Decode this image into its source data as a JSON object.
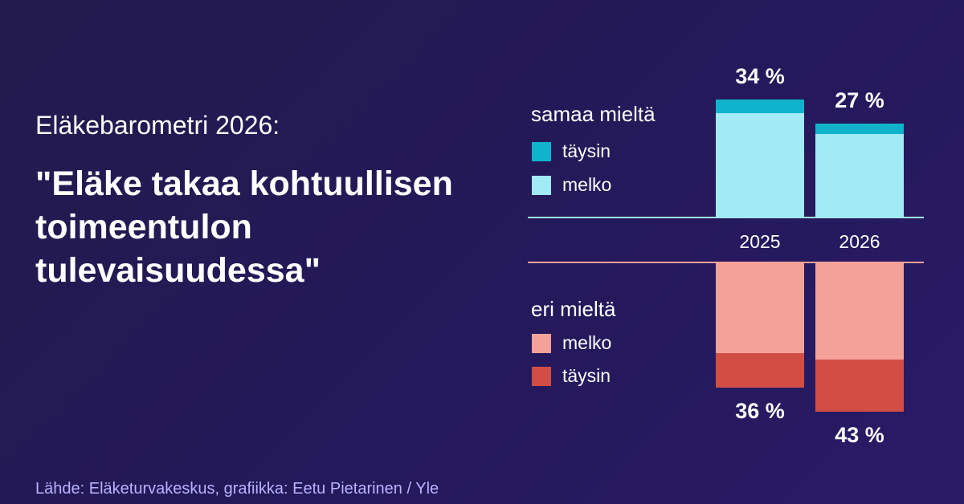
{
  "kicker": "Eläkebarometri 2026:",
  "headline": "\"Eläke takaa kohtuullisen toimeentulon tulevaisuudessa\"",
  "source": "Lähde: Eläketurvakeskus, grafiikka: Eetu Pietarinen / Yle",
  "colors": {
    "agree_fully": "#0fb3cc",
    "agree_somewhat": "#a1eaf6",
    "disagree_somewhat": "#f4a199",
    "disagree_fully": "#d24e44",
    "agree_axis": "#a1eaf6",
    "disagree_axis": "#f4a199"
  },
  "chart_data": {
    "type": "bar",
    "categories": [
      "2025",
      "2026"
    ],
    "groups": [
      {
        "title": "samaa mieltä",
        "totals": [
          "34 %",
          "27 %"
        ],
        "total_values": [
          34,
          27
        ],
        "series": [
          {
            "name": "täysin",
            "values": [
              4,
              3
            ]
          },
          {
            "name": "melko",
            "values": [
              30,
              24
            ]
          }
        ]
      },
      {
        "title": "eri mieltä",
        "totals": [
          "36 %",
          "43 %"
        ],
        "total_values": [
          36,
          43
        ],
        "series": [
          {
            "name": "melko",
            "values": [
              26,
              28
            ]
          },
          {
            "name": "täysin",
            "values": [
              10,
              15
            ]
          }
        ]
      }
    ]
  }
}
